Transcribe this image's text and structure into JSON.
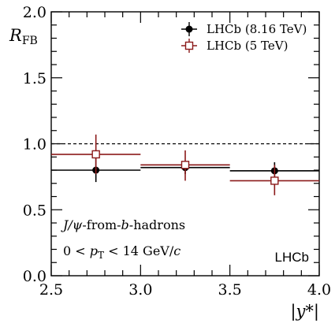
{
  "chart_data": {
    "type": "scatter",
    "ylabel_main": "R",
    "ylabel_sub": "FB",
    "xlabel": "|y*|",
    "xlim": [
      2.5,
      4.0
    ],
    "ylim": [
      0.0,
      2.0
    ],
    "x_ticks": [
      "2.5",
      "3.0",
      "3.5",
      "4.0"
    ],
    "y_ticks": [
      "0.0",
      "0.5",
      "1.0",
      "1.5",
      "2.0"
    ],
    "reference_line": 1.0,
    "series": [
      {
        "name": "LHCb (8.16 TeV)",
        "color": "#000000",
        "marker": "filled-circle",
        "points": [
          {
            "x": 2.75,
            "xlow": 2.5,
            "xhigh": 3.0,
            "y": 0.8,
            "ylow": 0.71,
            "yhigh": 0.89
          },
          {
            "x": 3.25,
            "xlow": 3.0,
            "xhigh": 3.5,
            "y": 0.82,
            "ylow": 0.77,
            "yhigh": 0.87
          },
          {
            "x": 3.75,
            "xlow": 3.5,
            "xhigh": 4.0,
            "y": 0.795,
            "ylow": 0.73,
            "yhigh": 0.86
          }
        ]
      },
      {
        "name": "LHCb (5 TeV)",
        "color": "#8b1a1a",
        "marker": "open-square",
        "points": [
          {
            "x": 2.75,
            "xlow": 2.5,
            "xhigh": 3.0,
            "y": 0.92,
            "ylow": 0.77,
            "yhigh": 1.07
          },
          {
            "x": 3.25,
            "xlow": 3.0,
            "xhigh": 3.5,
            "y": 0.84,
            "ylow": 0.72,
            "yhigh": 0.95
          },
          {
            "x": 3.75,
            "xlow": 3.5,
            "xhigh": 4.0,
            "y": 0.72,
            "ylow": 0.61,
            "yhigh": 0.84
          }
        ]
      }
    ],
    "legend_position": "top-right",
    "annotations": {
      "process_main": "J/ψ",
      "process_rest": "-from-",
      "process_b": "b",
      "process_end": "-hadrons",
      "range_left": "0 < ",
      "range_var": "p",
      "range_sub": "T",
      "range_right": " < 14 GeV/",
      "range_c": "c",
      "brand": "LHCb"
    }
  }
}
